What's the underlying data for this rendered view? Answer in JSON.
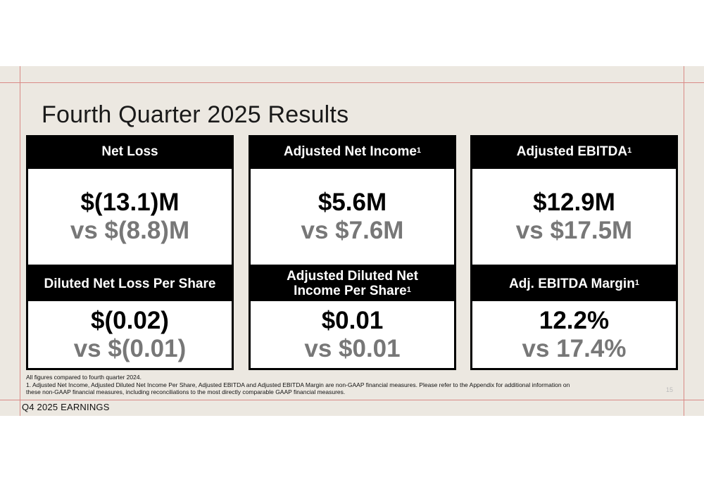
{
  "title": "Fourth Quarter 2025 Results",
  "cards": [
    {
      "label": "Net Loss",
      "sup": "",
      "value": "$(13.1)M",
      "comparison": "vs $(8.8)M"
    },
    {
      "label": "Adjusted Net Income",
      "sup": "1",
      "value": "$5.6M",
      "comparison": "vs $7.6M"
    },
    {
      "label": "Adjusted EBITDA",
      "sup": "1",
      "value": "$12.9M",
      "comparison": "vs $17.5M"
    },
    {
      "label": "Diluted Net Loss Per Share",
      "sup": "",
      "value": "$(0.02)",
      "comparison": "vs $(0.01)"
    },
    {
      "label_line1": "Adjusted Diluted Net",
      "label_line2": "Income Per Share",
      "sup": "1",
      "value": "$0.01",
      "comparison": "vs $0.01"
    },
    {
      "label": "Adj. EBITDA Margin",
      "sup": "1",
      "value": "12.2%",
      "comparison": "vs 17.4%"
    }
  ],
  "footnotes": {
    "compare": "All figures compared to fourth quarter 2024.",
    "note1": "1. Adjusted Net Income, Adjusted Diluted Net Income Per Share, Adjusted EBITDA and Adjusted EBITDA Margin are non-GAAP financial measures. Please refer to the Appendix for additional information on",
    "note2": "these non-GAAP financial measures, including reconciliations to the most directly comparable GAAP financial measures."
  },
  "page_number": "15",
  "brand": "Q4 2025 EARNINGS"
}
